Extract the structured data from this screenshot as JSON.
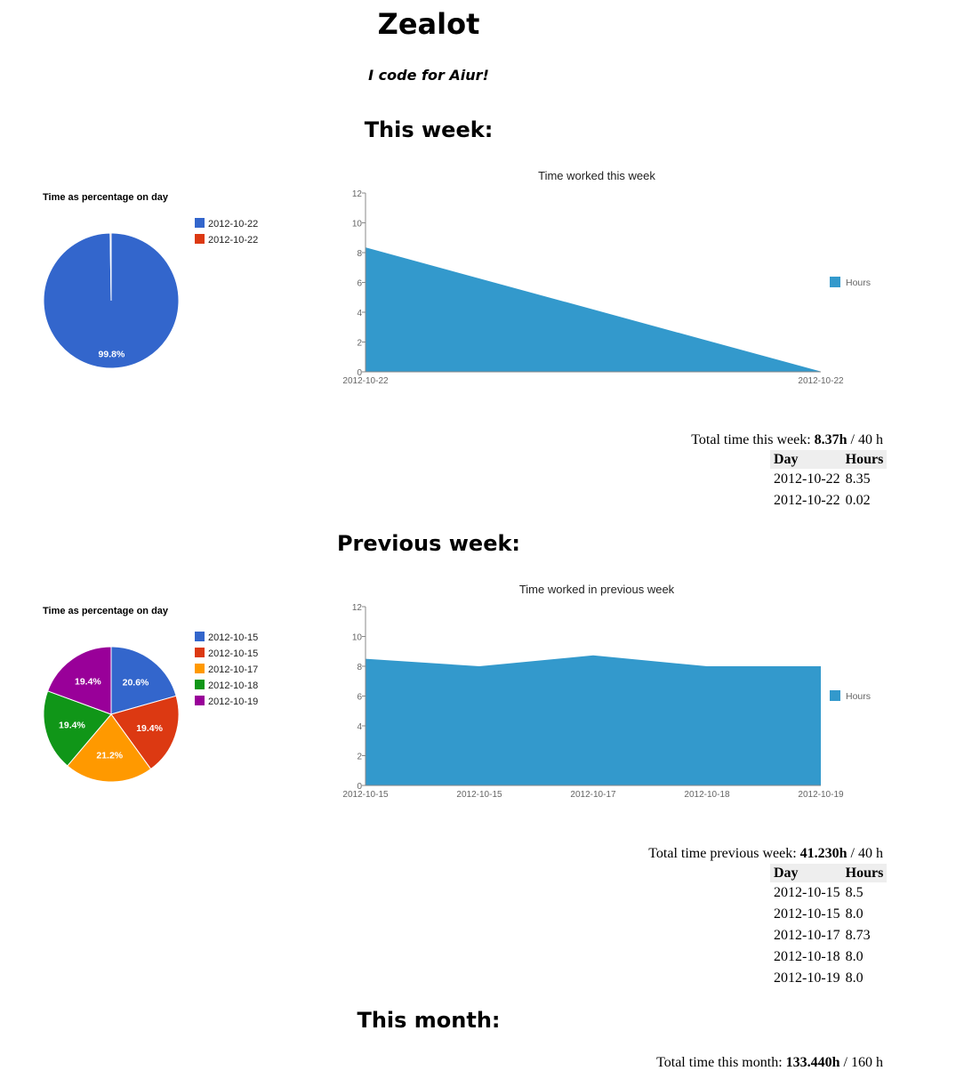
{
  "header": {
    "title": "Zealot",
    "tagline": "I code for Aiur!"
  },
  "sections": {
    "this_week": {
      "heading": "This week:",
      "total": {
        "label": "Total time this week: ",
        "value": "8.37h",
        "suffix": " / 40 h"
      },
      "table": {
        "headers": [
          "Day",
          "Hours"
        ],
        "rows": [
          [
            "2012-10-22",
            "8.35"
          ],
          [
            "2012-10-22",
            "0.02"
          ]
        ]
      }
    },
    "previous_week": {
      "heading": "Previous week:",
      "total": {
        "label": "Total time previous week: ",
        "value": "41.230h",
        "suffix": " / 40 h"
      },
      "table": {
        "headers": [
          "Day",
          "Hours"
        ],
        "rows": [
          [
            "2012-10-15",
            "8.5"
          ],
          [
            "2012-10-15",
            "8.0"
          ],
          [
            "2012-10-17",
            "8.73"
          ],
          [
            "2012-10-18",
            "8.0"
          ],
          [
            "2012-10-19",
            "8.0"
          ]
        ]
      }
    },
    "this_month": {
      "heading": "This month:",
      "total": {
        "label": "Total time this month: ",
        "value": "133.440h",
        "suffix": " / 160 h"
      }
    }
  },
  "chart_data": [
    {
      "id": "pie-this-week",
      "type": "pie",
      "title": "Time as percentage on day",
      "labels": [
        "2012-10-22",
        "2012-10-22"
      ],
      "values": [
        8.35,
        0.02
      ],
      "slice_labels": [
        "99.8%",
        ""
      ],
      "colors": [
        "#3366cc",
        "#dc3912"
      ],
      "legend_position": "right"
    },
    {
      "id": "area-this-week",
      "type": "area",
      "title": "Time worked this week",
      "categories": [
        "2012-10-22",
        "2012-10-22"
      ],
      "series": [
        {
          "name": "Hours",
          "values": [
            8.35,
            0.02
          ],
          "color": "#3399cc"
        }
      ],
      "ylim": [
        0,
        12
      ],
      "yticks": [
        0,
        2,
        4,
        6,
        8,
        10,
        12
      ],
      "legend_position": "right"
    },
    {
      "id": "pie-previous-week",
      "type": "pie",
      "title": "Time as percentage on day",
      "labels": [
        "2012-10-15",
        "2012-10-15",
        "2012-10-17",
        "2012-10-18",
        "2012-10-19"
      ],
      "values": [
        8.5,
        8.0,
        8.73,
        8.0,
        8.0
      ],
      "slice_labels": [
        "20.6%",
        "19.4%",
        "21.2%",
        "19.4%",
        "19.4%"
      ],
      "colors": [
        "#3366cc",
        "#dc3912",
        "#ff9900",
        "#109618",
        "#990099"
      ],
      "legend_position": "right"
    },
    {
      "id": "area-previous-week",
      "type": "area",
      "title": "Time worked in previous week",
      "categories": [
        "2012-10-15",
        "2012-10-15",
        "2012-10-17",
        "2012-10-18",
        "2012-10-19"
      ],
      "series": [
        {
          "name": "Hours",
          "values": [
            8.5,
            8.0,
            8.73,
            8.0,
            8.0
          ],
          "color": "#3399cc"
        }
      ],
      "ylim": [
        0,
        12
      ],
      "yticks": [
        0,
        2,
        4,
        6,
        8,
        10,
        12
      ],
      "legend_position": "right"
    }
  ]
}
